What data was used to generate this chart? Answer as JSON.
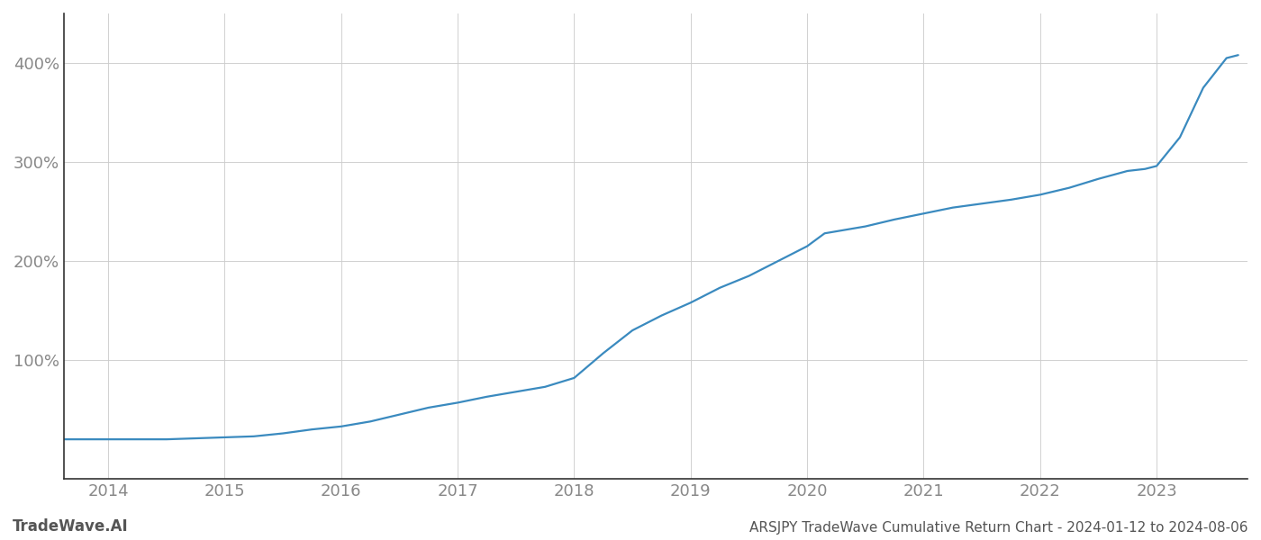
{
  "title": "ARSJPY TradeWave Cumulative Return Chart - 2024-01-12 to 2024-08-06",
  "watermark": "TradeWave.AI",
  "line_color": "#3a8abf",
  "background_color": "#ffffff",
  "grid_color": "#cccccc",
  "x_years": [
    2014,
    2015,
    2016,
    2017,
    2018,
    2019,
    2020,
    2021,
    2022,
    2023
  ],
  "xlim_start": 2013.62,
  "xlim_end": 2023.78,
  "ylim_min": -20,
  "ylim_max": 450,
  "y_ticks": [
    100,
    200,
    300,
    400
  ],
  "curve_x": [
    2013.62,
    2014.0,
    2014.25,
    2014.5,
    2014.75,
    2015.0,
    2015.25,
    2015.5,
    2015.75,
    2016.0,
    2016.25,
    2016.5,
    2016.75,
    2017.0,
    2017.25,
    2017.5,
    2017.75,
    2018.0,
    2018.25,
    2018.5,
    2018.75,
    2019.0,
    2019.25,
    2019.5,
    2019.75,
    2020.0,
    2020.15,
    2020.5,
    2020.75,
    2021.0,
    2021.25,
    2021.5,
    2021.75,
    2022.0,
    2022.25,
    2022.5,
    2022.75,
    2022.9,
    2023.0,
    2023.2,
    2023.4,
    2023.6,
    2023.7
  ],
  "curve_y": [
    20,
    20,
    20,
    20,
    21,
    22,
    23,
    26,
    30,
    33,
    38,
    45,
    52,
    57,
    63,
    68,
    73,
    82,
    107,
    130,
    145,
    158,
    173,
    185,
    200,
    215,
    228,
    235,
    242,
    248,
    254,
    258,
    262,
    267,
    274,
    283,
    291,
    293,
    296,
    325,
    375,
    405,
    408
  ]
}
